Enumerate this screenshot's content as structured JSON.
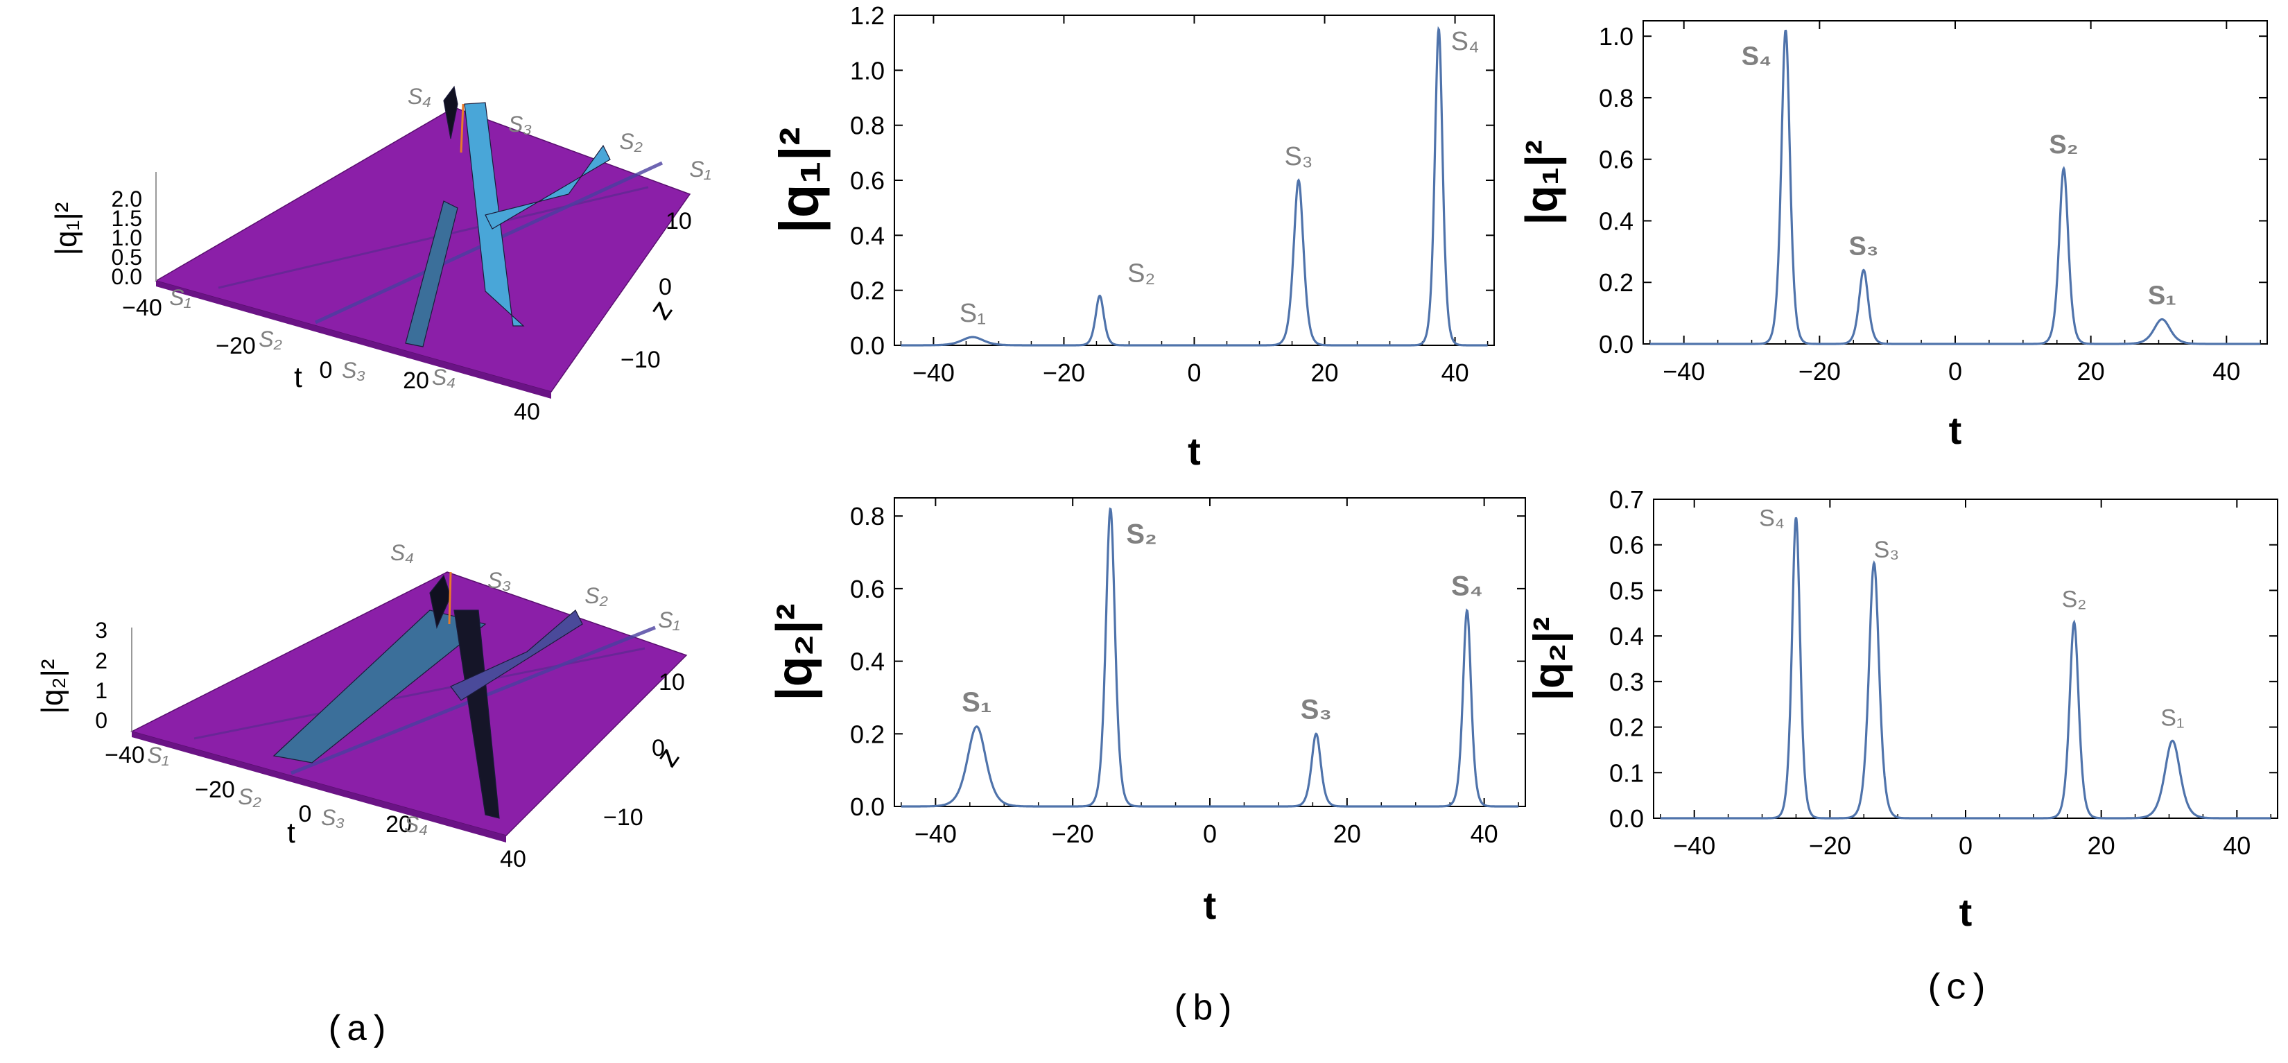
{
  "captions": {
    "a": "(a)",
    "b": "(b)",
    "c": "(c)"
  },
  "colors": {
    "curve": "#4f73ab",
    "label_gray": "#808080",
    "surface": "#8b1fa8",
    "surface_shade": "#6a1385",
    "peak_blue": "#49a6d8",
    "peak_yellow": "#e2e04a"
  },
  "chart_data": [
    {
      "type": "surface3d",
      "panel": "a-top",
      "zlabel": "|q₁|²",
      "xlabel": "t",
      "ylabel": "z",
      "t_ticks": [
        "−40",
        "−20",
        "0",
        "20",
        "40"
      ],
      "z_ticks": [
        "10",
        "0",
        "−10"
      ],
      "amp_ticks": [
        "0.0",
        "0.5",
        "1.0",
        "1.5",
        "2.0"
      ],
      "zlim": [
        0,
        2.0
      ],
      "soliton_labels": [
        "S₁",
        "S₂",
        "S₃",
        "S₄"
      ],
      "far_labels": [
        "S₄",
        "S₃",
        "S₂",
        "S₁"
      ]
    },
    {
      "type": "surface3d",
      "panel": "a-bottom",
      "zlabel": "|q₂|²",
      "xlabel": "t",
      "ylabel": "z",
      "t_ticks": [
        "−40",
        "−20",
        "0",
        "20",
        "40"
      ],
      "z_ticks": [
        "10",
        "0",
        "−10"
      ],
      "amp_ticks": [
        "0",
        "1",
        "2",
        "3"
      ],
      "zlim": [
        0,
        3
      ],
      "soliton_labels": [
        "S₁",
        "S₂",
        "S₃",
        "S₄"
      ],
      "far_labels": [
        "S₄",
        "S₃",
        "S₂",
        "S₁"
      ]
    },
    {
      "type": "line",
      "panel": "b-top",
      "xlabel": "t",
      "ylabel": "|q₁|²",
      "xlim": [
        -46,
        46
      ],
      "ylim": [
        0,
        1.2
      ],
      "xticks": [
        -40,
        -20,
        0,
        20,
        40
      ],
      "yticks": [
        0.0,
        0.2,
        0.4,
        0.6,
        0.8,
        1.0,
        1.2
      ],
      "ytick_labels": [
        "0.0",
        "0.2",
        "0.4",
        "0.6",
        "0.8",
        "1.0",
        "1.2"
      ],
      "peaks": [
        {
          "label": "S₁",
          "t": -34,
          "value": 0.03,
          "width": 2.2
        },
        {
          "label": "S₂",
          "t": -14.5,
          "value": 0.18,
          "width": 0.85
        },
        {
          "label": "S₃",
          "t": 16,
          "value": 0.6,
          "width": 1.0
        },
        {
          "label": "S₄",
          "t": 37.5,
          "value": 1.15,
          "width": 0.8
        }
      ]
    },
    {
      "type": "line",
      "panel": "c-top",
      "xlabel": "t",
      "ylabel": "|q₁|²",
      "xlim": [
        -46,
        46
      ],
      "ylim": [
        0,
        1.05
      ],
      "xticks": [
        -40,
        -20,
        0,
        20,
        40
      ],
      "yticks": [
        0.0,
        0.2,
        0.4,
        0.6,
        0.8,
        1.0
      ],
      "ytick_labels": [
        "0.0",
        "0.2",
        "0.4",
        "0.6",
        "0.8",
        "1.0"
      ],
      "peaks": [
        {
          "label": "S₄",
          "t": -25,
          "value": 1.02,
          "width": 0.85
        },
        {
          "label": "S₃",
          "t": -13.5,
          "value": 0.24,
          "width": 0.9
        },
        {
          "label": "S₂",
          "t": 16,
          "value": 0.57,
          "width": 0.9
        },
        {
          "label": "S₁",
          "t": 30.5,
          "value": 0.08,
          "width": 1.6
        }
      ]
    },
    {
      "type": "line",
      "panel": "b-bottom",
      "xlabel": "t",
      "ylabel": "|q₂|²",
      "xlim": [
        -46,
        46
      ],
      "ylim": [
        0,
        0.85
      ],
      "xticks": [
        -40,
        -20,
        0,
        20,
        40
      ],
      "yticks": [
        0.0,
        0.2,
        0.4,
        0.6,
        0.8
      ],
      "ytick_labels": [
        "0.0",
        "0.2",
        "0.4",
        "0.6",
        "0.8"
      ],
      "peaks": [
        {
          "label": "S₁",
          "t": -34,
          "value": 0.22,
          "width": 1.8
        },
        {
          "label": "S₂",
          "t": -14.5,
          "value": 0.82,
          "width": 0.9
        },
        {
          "label": "S₃",
          "t": 15.5,
          "value": 0.2,
          "width": 0.9
        },
        {
          "label": "S₄",
          "t": 37.5,
          "value": 0.54,
          "width": 0.8
        }
      ]
    },
    {
      "type": "line",
      "panel": "c-bottom",
      "xlabel": "t",
      "ylabel": "|q₂|²",
      "xlim": [
        -46,
        46
      ],
      "ylim": [
        0,
        0.7
      ],
      "xticks": [
        -40,
        -20,
        0,
        20,
        40
      ],
      "yticks": [
        0.0,
        0.1,
        0.2,
        0.3,
        0.4,
        0.5,
        0.6,
        0.7
      ],
      "ytick_labels": [
        "0.0",
        "0.1",
        "0.2",
        "0.3",
        "0.4",
        "0.5",
        "0.6",
        "0.7"
      ],
      "peaks": [
        {
          "label": "S₄",
          "t": -25,
          "value": 0.66,
          "width": 0.8
        },
        {
          "label": "S₃",
          "t": -13.5,
          "value": 0.56,
          "width": 1.0
        },
        {
          "label": "S₂",
          "t": 16,
          "value": 0.43,
          "width": 0.9
        },
        {
          "label": "S₁",
          "t": 30.5,
          "value": 0.17,
          "width": 1.5
        }
      ]
    }
  ]
}
